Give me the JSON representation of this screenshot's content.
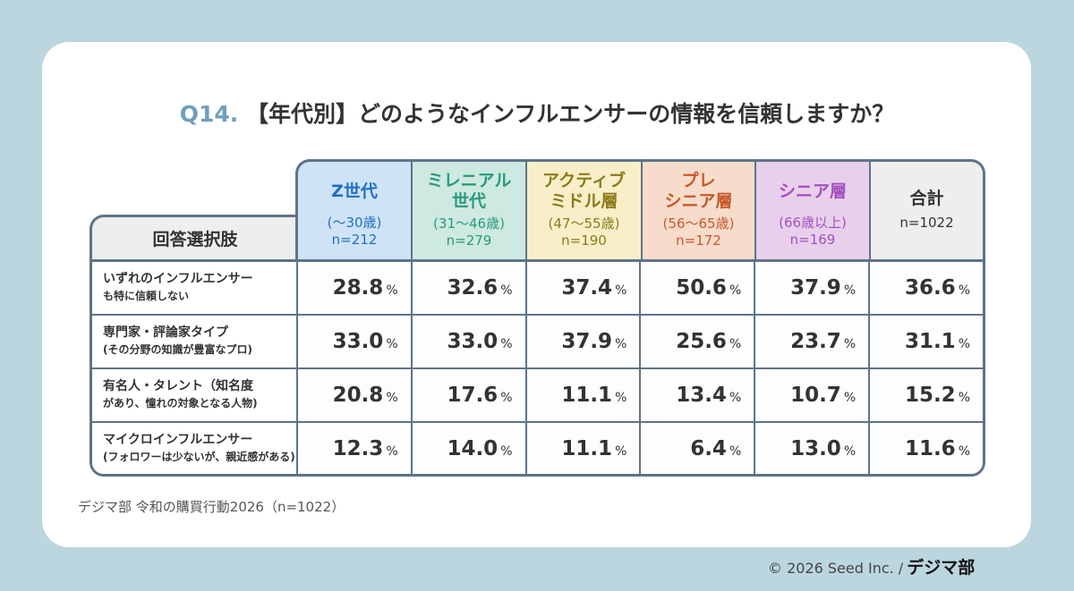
{
  "title": {
    "q": "Q14.",
    "text": "【年代別】どのようなインフルエンサーの情報を信頼しますか？"
  },
  "chart_data": {
    "type": "table",
    "row_header": "回答選択肢",
    "columns": [
      {
        "name1": "Z世代",
        "name2": "",
        "range": "(〜30歳)",
        "n": "n=212",
        "color": "#1f6fc6",
        "bg": "#cfe3f7"
      },
      {
        "name1": "ミレニアル",
        "name2": "世代",
        "range": "(31〜46歳)",
        "n": "n=279",
        "color": "#2a9a78",
        "bg": "#cde9e2"
      },
      {
        "name1": "アクティブ",
        "name2": "ミドル層",
        "range": "(47〜55歳)",
        "n": "n=190",
        "color": "#8c7a1c",
        "bg": "#f8efc8"
      },
      {
        "name1": "プレ",
        "name2": "シニア層",
        "range": "(56〜65歳)",
        "n": "n=172",
        "color": "#c8582a",
        "bg": "#f7dccb"
      },
      {
        "name1": "シニア層",
        "name2": "",
        "range": "(66歳以上)",
        "n": "n=169",
        "color": "#a34fc0",
        "bg": "#e8d0ec"
      },
      {
        "name1": "合計",
        "name2": "",
        "range": "",
        "n": "n=1022",
        "color": "#333333",
        "bg": "#eeeeee"
      }
    ],
    "rows": [
      {
        "l1": "いずれのインフルエンサー",
        "l2": "も特に信頼しない",
        "values": [
          "28.8",
          "32.6",
          "37.4",
          "50.6",
          "37.9",
          "36.6"
        ]
      },
      {
        "l1": "専門家・評論家タイプ",
        "l2": "(その分野の知識が豊富なプロ)",
        "values": [
          "33.0",
          "33.0",
          "37.9",
          "25.6",
          "23.7",
          "31.1"
        ]
      },
      {
        "l1": "有名人・タレント（知名度",
        "l2": "があり、憧れの対象となる人物)",
        "values": [
          "20.8",
          "17.6",
          "11.1",
          "13.4",
          "10.7",
          "15.2"
        ]
      },
      {
        "l1": "マイクロインフルエンサー",
        "l2": "(フォロワーは少ないが、親近感がある)",
        "values": [
          "12.3",
          "14.0",
          "11.1",
          "6.4",
          "13.0",
          "11.6"
        ]
      }
    ],
    "unit": "%"
  },
  "source": "デジマ部 令和の購買行動2026（n=1022）",
  "copyright": "© 2026 Seed Inc. /",
  "logo": "デジマ部"
}
